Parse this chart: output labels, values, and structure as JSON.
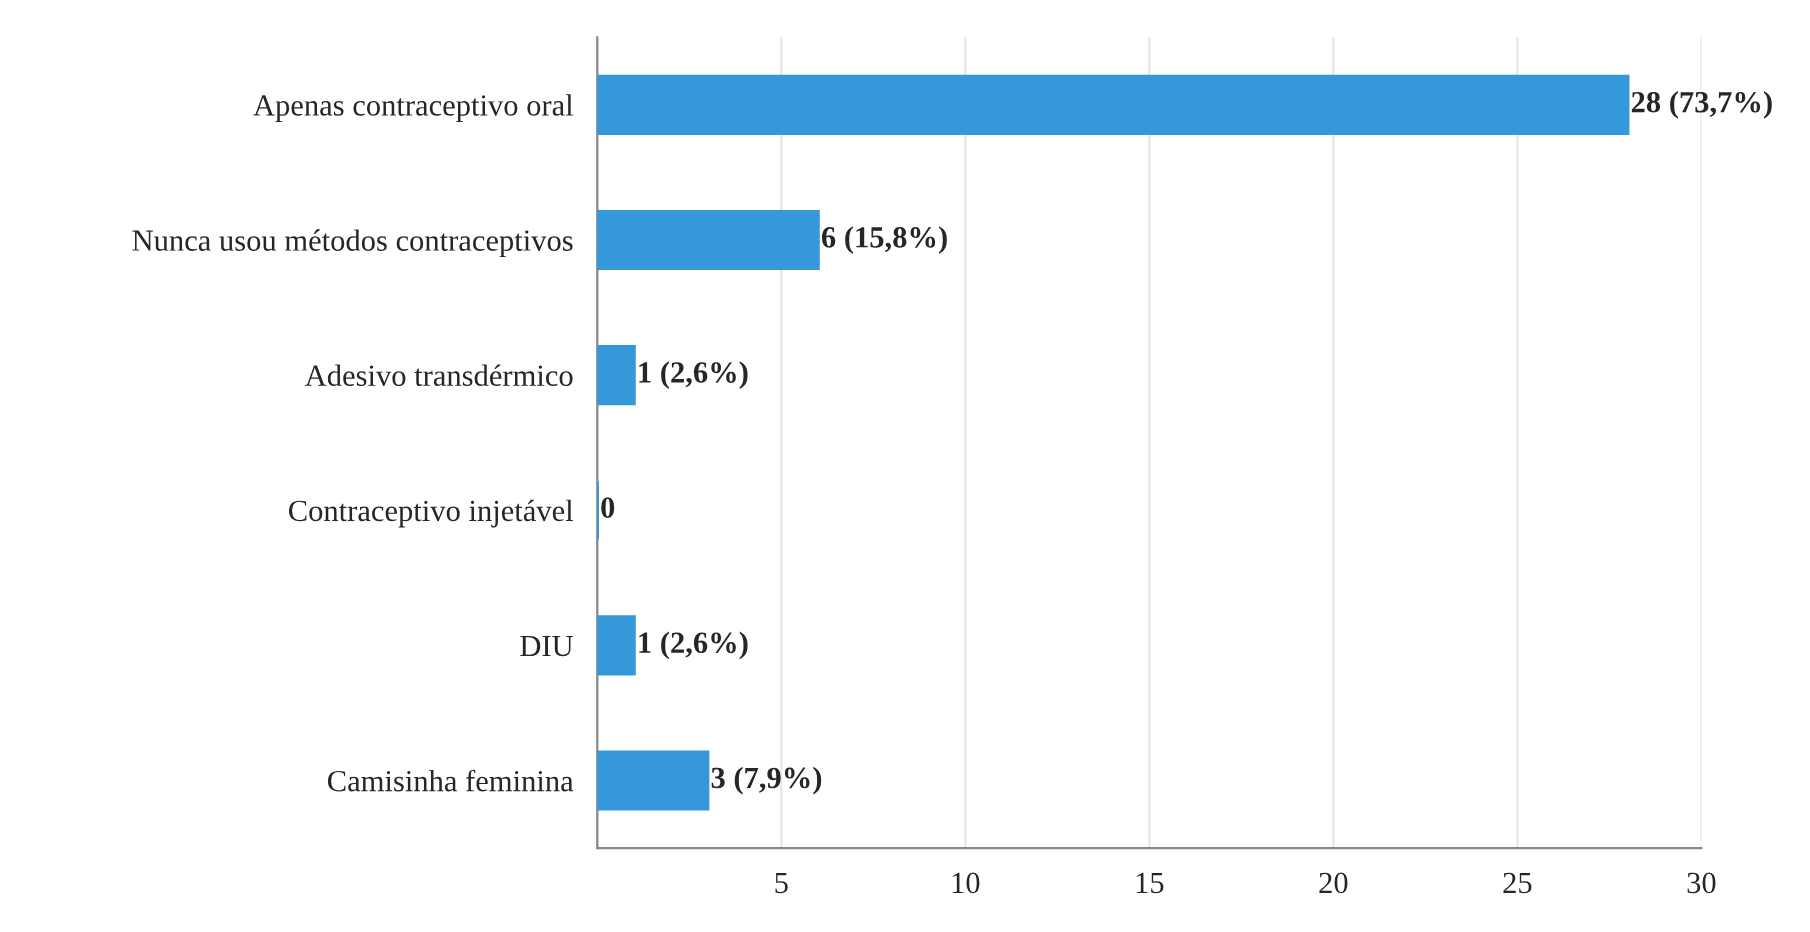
{
  "chart_data": {
    "type": "bar",
    "orientation": "horizontal",
    "categories": [
      "Apenas contraceptivo oral",
      "Nunca usou métodos contraceptivos",
      "Adesivo transdérmico",
      "Contraceptivo injetável",
      "DIU",
      "Camisinha feminina"
    ],
    "values": [
      28,
      6,
      1,
      0,
      1,
      3
    ],
    "value_labels": [
      "28 (73,7%)",
      "6 (15,8%)",
      "1 (2,6%)",
      "0",
      "1 (2,6%)",
      "3 (7,9%)"
    ],
    "color": "#3498db",
    "xlim": [
      0,
      30
    ],
    "xticks": [
      {
        "value": 0,
        "label": null
      },
      5,
      10,
      15,
      20,
      25,
      30
    ],
    "grid": "x"
  }
}
